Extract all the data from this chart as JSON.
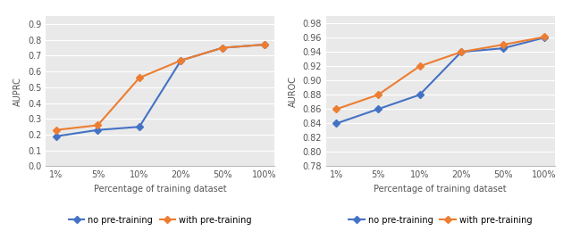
{
  "x_labels": [
    "1%",
    "5%",
    "10%",
    "20%",
    "50%",
    "100%"
  ],
  "x_values": [
    0,
    1,
    2,
    3,
    4,
    5
  ],
  "auprc_no_pretrain": [
    0.19,
    0.23,
    0.25,
    0.67,
    0.75,
    0.77
  ],
  "auprc_with_pretrain": [
    0.23,
    0.26,
    0.56,
    0.67,
    0.75,
    0.77
  ],
  "auroc_no_pretrain": [
    0.84,
    0.86,
    0.88,
    0.94,
    0.945,
    0.96
  ],
  "auroc_with_pretrain": [
    0.86,
    0.88,
    0.92,
    0.94,
    0.95,
    0.961
  ],
  "color_no_pretrain": "#4472c4",
  "color_with_pretrain": "#ed7d31",
  "marker": "D",
  "auprc_ylabel": "AUPRC",
  "auroc_ylabel": "AUROC",
  "xlabel": "Percentage of training dataset",
  "auprc_ylim": [
    0,
    0.95
  ],
  "auprc_yticks": [
    0,
    0.1,
    0.2,
    0.3,
    0.4,
    0.5,
    0.6,
    0.7,
    0.8,
    0.9
  ],
  "auroc_ylim": [
    0.78,
    0.99
  ],
  "auroc_yticks": [
    0.78,
    0.8,
    0.82,
    0.84,
    0.86,
    0.88,
    0.9,
    0.92,
    0.94,
    0.96,
    0.98
  ],
  "legend_no_pretrain": "no pre-training",
  "legend_with_pretrain": "with pre-training",
  "plot_bg_color": "#e9e9e9",
  "fig_bg_color": "#ffffff",
  "grid_color": "#ffffff",
  "linewidth": 1.5,
  "markersize": 4,
  "fontsize_label": 7,
  "fontsize_tick": 7,
  "fontsize_legend": 7
}
